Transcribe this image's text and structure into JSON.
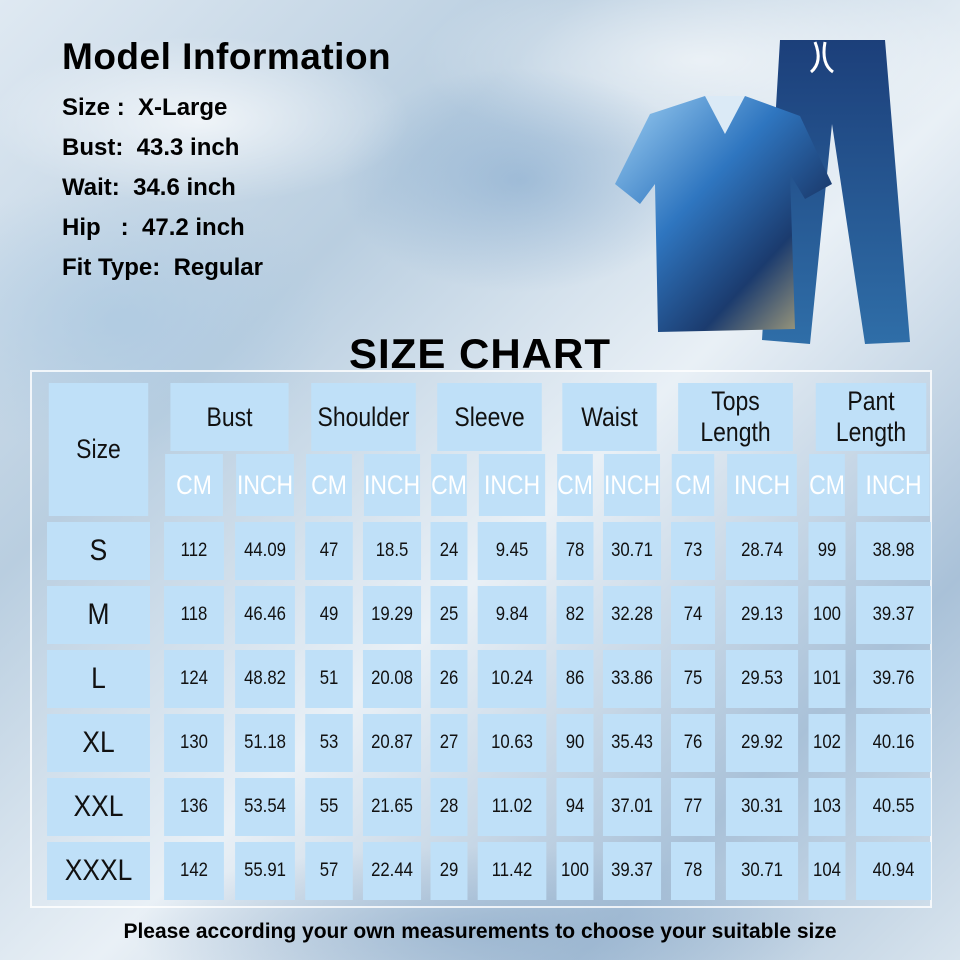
{
  "model_info": {
    "title": "Model Information",
    "rows": [
      {
        "label": "Size :",
        "value": "X-Large"
      },
      {
        "label": "Bust:",
        "value": "43.3 inch"
      },
      {
        "label": "Wait:",
        "value": "34.6 inch"
      },
      {
        "label": "Hip   :",
        "value": "47.2 inch"
      },
      {
        "label": "Fit Type:",
        "value": "Regular"
      }
    ]
  },
  "size_chart": {
    "title": "SIZE CHART",
    "size_header": "Size",
    "groups": [
      "Bust",
      "Shoulder",
      "Sleeve",
      "Waist",
      "Tops Length",
      "Pant Length"
    ],
    "unit_cm": "CM",
    "unit_inch": "INCH",
    "rows": [
      {
        "size": "S",
        "values": [
          "112",
          "44.09",
          "47",
          "18.5",
          "24",
          "9.45",
          "78",
          "30.71",
          "73",
          "28.74",
          "99",
          "38.98"
        ]
      },
      {
        "size": "M",
        "values": [
          "118",
          "46.46",
          "49",
          "19.29",
          "25",
          "9.84",
          "82",
          "32.28",
          "74",
          "29.13",
          "100",
          "39.37"
        ]
      },
      {
        "size": "L",
        "values": [
          "124",
          "48.82",
          "51",
          "20.08",
          "26",
          "10.24",
          "86",
          "33.86",
          "75",
          "29.53",
          "101",
          "39.76"
        ]
      },
      {
        "size": "XL",
        "values": [
          "130",
          "51.18",
          "53",
          "20.87",
          "27",
          "10.63",
          "90",
          "35.43",
          "76",
          "29.92",
          "102",
          "40.16"
        ]
      },
      {
        "size": "XXL",
        "values": [
          "136",
          "53.54",
          "55",
          "21.65",
          "28",
          "11.02",
          "94",
          "37.01",
          "77",
          "30.31",
          "103",
          "40.55"
        ]
      },
      {
        "size": "XXXL",
        "values": [
          "142",
          "55.91",
          "57",
          "22.44",
          "29",
          "11.42",
          "100",
          "39.37",
          "78",
          "30.71",
          "104",
          "40.94"
        ]
      }
    ]
  },
  "footer": "Please according your own measurements to choose your suitable size",
  "colors": {
    "cell": "#bfe0f8",
    "pants": "#1f4f8a",
    "top": "#4f8fd0"
  }
}
